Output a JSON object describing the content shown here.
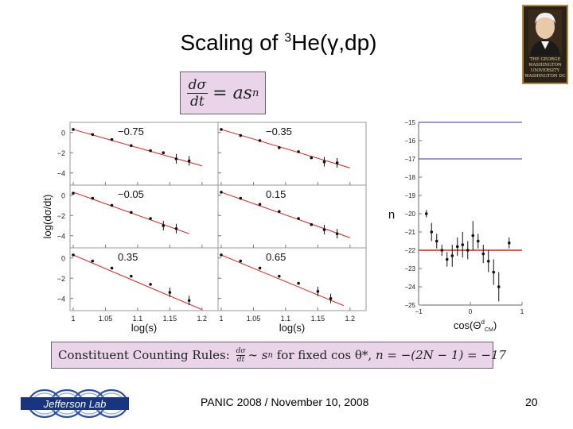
{
  "title": {
    "prefix": "Scaling of ",
    "sup": "3",
    "suffix": "He(γ,dp)"
  },
  "formula": {
    "num": "dσ",
    "den": "dt",
    "rhs": "= as",
    "exp": "n"
  },
  "logo": {
    "lines": [
      "THE GEORGE",
      "WASHINGTON",
      "UNIVERSITY",
      "WASHINGTON DC"
    ]
  },
  "ccr": {
    "label": "Constituent Counting Rules:",
    "frac_num": "dσ",
    "frac_den": "dt",
    "rel": "∼ s",
    "exp": "n",
    "middle": " for fixed cos θ*, ",
    "eq": "n = −(2N − 1) = −17"
  },
  "footer": {
    "text": "PANIC 2008 / November 10, 2008",
    "page": "20"
  },
  "jlab": {
    "text": "Jefferson Lab"
  },
  "colors": {
    "fit": "#d62020",
    "points": "#111111",
    "blue_line": "#3030c0",
    "box": "#e9d4ea"
  },
  "chart_data": [
    {
      "type": "scatter",
      "name": "grid",
      "ylabel": "log(dσ/dt)",
      "xlabel": "log(s)",
      "xlim": [
        1.0,
        1.22
      ],
      "ylim": [
        -5.2,
        1.0
      ],
      "xticks": [
        "1",
        "1.05",
        "1.1",
        "1.15",
        "1.2"
      ],
      "yticks": [
        "0",
        "−2",
        "−4"
      ],
      "panels": [
        {
          "label": "−0.75",
          "x": [
            1.0,
            1.03,
            1.06,
            1.09,
            1.12,
            1.14,
            1.16,
            1.18
          ],
          "y": [
            0.3,
            -0.2,
            -0.7,
            -1.3,
            -1.8,
            -2.0,
            -2.6,
            -2.8
          ],
          "fit": [
            0.3,
            -3.3
          ]
        },
        {
          "label": "−0.35",
          "x": [
            1.0,
            1.03,
            1.06,
            1.09,
            1.12,
            1.14,
            1.16,
            1.18
          ],
          "y": [
            0.3,
            -0.3,
            -0.8,
            -1.5,
            -1.9,
            -2.5,
            -2.9,
            -3.0
          ],
          "fit": [
            0.3,
            -3.5
          ]
        },
        {
          "label": "−0.05",
          "x": [
            1.0,
            1.03,
            1.06,
            1.09,
            1.12,
            1.14,
            1.16
          ],
          "y": [
            0.2,
            -0.3,
            -1.0,
            -1.7,
            -2.3,
            -3.0,
            -3.3
          ],
          "fit": [
            0.3,
            -3.8
          ]
        },
        {
          "label": "0.15",
          "x": [
            1.0,
            1.03,
            1.06,
            1.09,
            1.12,
            1.14,
            1.16,
            1.18
          ],
          "y": [
            0.3,
            -0.3,
            -0.9,
            -1.6,
            -2.3,
            -2.9,
            -3.4,
            -3.8
          ],
          "fit": [
            0.3,
            -4.2
          ]
        },
        {
          "label": "0.35",
          "x": [
            1.0,
            1.03,
            1.06,
            1.09,
            1.12,
            1.15,
            1.18
          ],
          "y": [
            0.3,
            -0.3,
            -1.0,
            -1.8,
            -2.6,
            -3.4,
            -4.2
          ],
          "fit": [
            0.3,
            -5.1
          ]
        },
        {
          "label": "0.65",
          "x": [
            1.0,
            1.03,
            1.06,
            1.09,
            1.12,
            1.15,
            1.17
          ],
          "y": [
            0.3,
            -0.3,
            -1.0,
            -1.8,
            -2.5,
            -3.3,
            -4.0
          ],
          "fit": [
            0.3,
            -4.7
          ]
        }
      ]
    },
    {
      "type": "scatter",
      "name": "exponent",
      "ylabel": "n",
      "xlabel": "cos(Θ",
      "xlabel_sup": "d",
      "xlabel_sub": "CM",
      "xlim": [
        -1,
        1
      ],
      "ylim": [
        -25,
        -15
      ],
      "xticks": [
        "−1",
        "0",
        "1"
      ],
      "yticks": [
        "−15",
        "−16",
        "−17",
        "−18",
        "−19",
        "−20",
        "−21",
        "−22",
        "−23",
        "−24",
        "−25"
      ],
      "hlines": [
        {
          "y": -15.0,
          "color": "blue"
        },
        {
          "y": -17.0,
          "color": "blue"
        },
        {
          "y": -22.0,
          "color": "red"
        }
      ],
      "points": [
        {
          "x": -0.85,
          "y": -20.0,
          "err": 0.2
        },
        {
          "x": -0.75,
          "y": -21.0,
          "err": 0.5
        },
        {
          "x": -0.65,
          "y": -21.5,
          "err": 0.4
        },
        {
          "x": -0.55,
          "y": -22.0,
          "err": 0.3
        },
        {
          "x": -0.45,
          "y": -22.5,
          "err": 0.4
        },
        {
          "x": -0.35,
          "y": -22.3,
          "err": 0.6
        },
        {
          "x": -0.25,
          "y": -21.8,
          "err": 0.5
        },
        {
          "x": -0.15,
          "y": -21.7,
          "err": 0.7
        },
        {
          "x": -0.05,
          "y": -22.0,
          "err": 0.5
        },
        {
          "x": 0.05,
          "y": -21.2,
          "err": 0.8
        },
        {
          "x": 0.15,
          "y": -21.5,
          "err": 0.4
        },
        {
          "x": 0.25,
          "y": -22.2,
          "err": 0.5
        },
        {
          "x": 0.35,
          "y": -22.6,
          "err": 0.6
        },
        {
          "x": 0.45,
          "y": -23.2,
          "err": 0.7
        },
        {
          "x": 0.55,
          "y": -24.0,
          "err": 0.8
        },
        {
          "x": 0.75,
          "y": -21.6,
          "err": 0.3
        }
      ]
    }
  ]
}
